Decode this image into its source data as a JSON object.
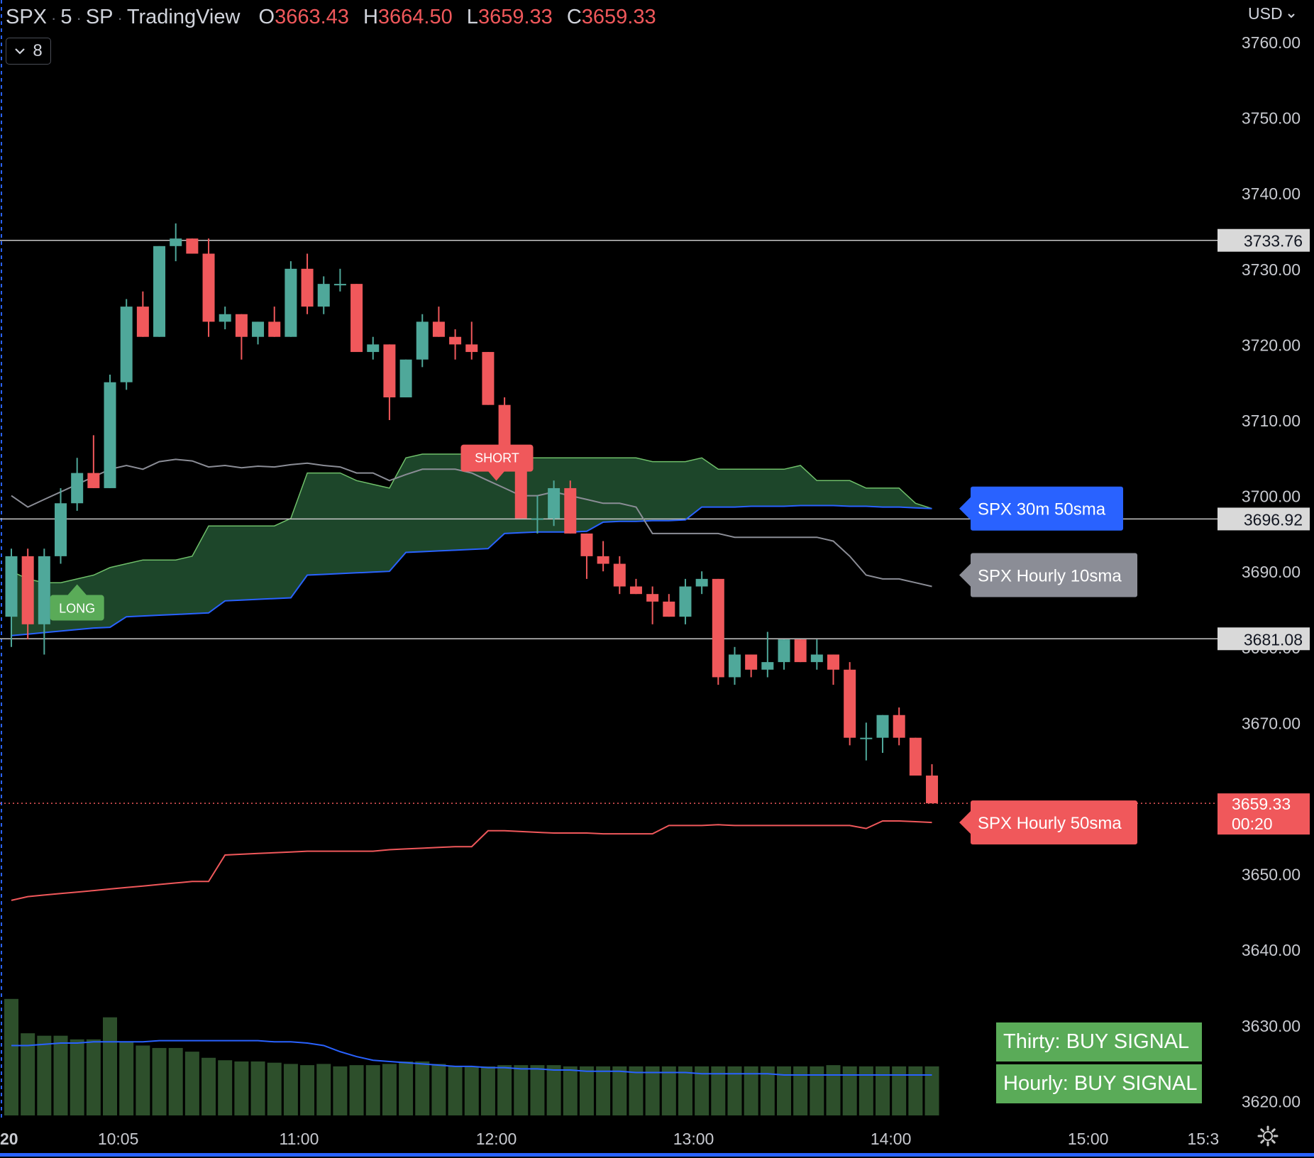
{
  "header": {
    "symbol": "SPX",
    "interval": "5",
    "exchange": "SP",
    "source": "TradingView",
    "open_label": "O",
    "open": "3663.43",
    "high_label": "H",
    "high": "3664.50",
    "low_label": "L",
    "low": "3659.33",
    "close_label": "C",
    "close": "3659.33",
    "indicators_count": "8",
    "currency": "USD"
  },
  "colors": {
    "up": "#4fa89a",
    "down": "#f0585b",
    "cloud": "#1f4a2c",
    "cloud_edge": "#6fc06a",
    "sma30m": "#2962ff",
    "sma10h": "#8b8d96",
    "sma50h": "#f0585b",
    "volume": "#2d4f2b",
    "volume_ma": "#2962ff",
    "hline": "#c8c8c8"
  },
  "markers": {
    "long": "LONG",
    "short": "SHORT"
  },
  "signals": {
    "thirty": "Thirty: BUY SIGNAL",
    "hourly": "Hourly: BUY SIGNAL"
  },
  "chart_data": {
    "type": "candlestick",
    "y_axis": {
      "min": 3615,
      "max": 3765,
      "ticks": [
        "3760.00",
        "3750.00",
        "3740.00",
        "3730.00",
        "3720.00",
        "3710.00",
        "3700.00",
        "3690.00",
        "3680.00",
        "3670.00",
        "3650.00",
        "3640.00",
        "3630.00",
        "3620.00"
      ]
    },
    "x_axis": {
      "ticks": [
        {
          "label": "20",
          "bar": -0.2
        },
        {
          "label": "10:05",
          "bar": 6.5
        },
        {
          "label": "11:00",
          "bar": 17.5
        },
        {
          "label": "12:00",
          "bar": 29.5
        },
        {
          "label": "13:00",
          "bar": 41.5
        },
        {
          "label": "14:00",
          "bar": 53.5
        },
        {
          "label": "15:00",
          "bar": 65.5
        },
        {
          "label": "15:3",
          "bar": 72.5
        }
      ]
    },
    "candles": [
      {
        "o": 3684,
        "h": 3693,
        "l": 3680,
        "c": 3692
      },
      {
        "o": 3692,
        "h": 3693,
        "l": 3681,
        "c": 3683
      },
      {
        "o": 3683,
        "h": 3693,
        "l": 3679,
        "c": 3692
      },
      {
        "o": 3692,
        "h": 3701,
        "l": 3691,
        "c": 3699
      },
      {
        "o": 3699,
        "h": 3705,
        "l": 3698,
        "c": 3703
      },
      {
        "o": 3703,
        "h": 3708,
        "l": 3701,
        "c": 3701
      },
      {
        "o": 3701,
        "h": 3716,
        "l": 3701,
        "c": 3715
      },
      {
        "o": 3715,
        "h": 3726,
        "l": 3714,
        "c": 3725
      },
      {
        "o": 3725,
        "h": 3727,
        "l": 3721,
        "c": 3721
      },
      {
        "o": 3721,
        "h": 3733,
        "l": 3721,
        "c": 3733
      },
      {
        "o": 3733,
        "h": 3736,
        "l": 3731,
        "c": 3734
      },
      {
        "o": 3734,
        "h": 3734,
        "l": 3732,
        "c": 3732
      },
      {
        "o": 3732,
        "h": 3734,
        "l": 3721,
        "c": 3723
      },
      {
        "o": 3723,
        "h": 3725,
        "l": 3722,
        "c": 3724
      },
      {
        "o": 3724,
        "h": 3724,
        "l": 3718,
        "c": 3721
      },
      {
        "o": 3721,
        "h": 3723,
        "l": 3720,
        "c": 3723
      },
      {
        "o": 3723,
        "h": 3725,
        "l": 3721,
        "c": 3721
      },
      {
        "o": 3721,
        "h": 3731,
        "l": 3721,
        "c": 3730
      },
      {
        "o": 3730,
        "h": 3732,
        "l": 3724,
        "c": 3725
      },
      {
        "o": 3725,
        "h": 3729,
        "l": 3724,
        "c": 3728
      },
      {
        "o": 3728,
        "h": 3730,
        "l": 3727,
        "c": 3728
      },
      {
        "o": 3728,
        "h": 3728,
        "l": 3719,
        "c": 3719
      },
      {
        "o": 3719,
        "h": 3721,
        "l": 3718,
        "c": 3720
      },
      {
        "o": 3720,
        "h": 3720,
        "l": 3710,
        "c": 3713
      },
      {
        "o": 3713,
        "h": 3718,
        "l": 3713,
        "c": 3718
      },
      {
        "o": 3718,
        "h": 3724,
        "l": 3717,
        "c": 3723
      },
      {
        "o": 3723,
        "h": 3725,
        "l": 3721,
        "c": 3721
      },
      {
        "o": 3721,
        "h": 3722,
        "l": 3718,
        "c": 3720
      },
      {
        "o": 3720,
        "h": 3723,
        "l": 3718,
        "c": 3719
      },
      {
        "o": 3719,
        "h": 3719,
        "l": 3712,
        "c": 3712
      },
      {
        "o": 3712,
        "h": 3713,
        "l": 3705,
        "c": 3705
      },
      {
        "o": 3705,
        "h": 3706,
        "l": 3697,
        "c": 3697
      },
      {
        "o": 3697,
        "h": 3700,
        "l": 3695,
        "c": 3697
      },
      {
        "o": 3697,
        "h": 3702,
        "l": 3696,
        "c": 3701
      },
      {
        "o": 3701,
        "h": 3702,
        "l": 3695,
        "c": 3695
      },
      {
        "o": 3695,
        "h": 3695,
        "l": 3689,
        "c": 3692
      },
      {
        "o": 3692,
        "h": 3694,
        "l": 3690,
        "c": 3691
      },
      {
        "o": 3691,
        "h": 3692,
        "l": 3687,
        "c": 3688
      },
      {
        "o": 3688,
        "h": 3689,
        "l": 3687,
        "c": 3687
      },
      {
        "o": 3687,
        "h": 3688,
        "l": 3683,
        "c": 3686
      },
      {
        "o": 3686,
        "h": 3687,
        "l": 3684,
        "c": 3684
      },
      {
        "o": 3684,
        "h": 3689,
        "l": 3683,
        "c": 3688
      },
      {
        "o": 3688,
        "h": 3690,
        "l": 3687,
        "c": 3689
      },
      {
        "o": 3689,
        "h": 3689,
        "l": 3675,
        "c": 3676
      },
      {
        "o": 3676,
        "h": 3680,
        "l": 3675,
        "c": 3679
      },
      {
        "o": 3679,
        "h": 3679,
        "l": 3676,
        "c": 3677
      },
      {
        "o": 3677,
        "h": 3682,
        "l": 3676,
        "c": 3678
      },
      {
        "o": 3678,
        "h": 3681,
        "l": 3677,
        "c": 3681
      },
      {
        "o": 3681,
        "h": 3681,
        "l": 3678,
        "c": 3678
      },
      {
        "o": 3678,
        "h": 3681,
        "l": 3677,
        "c": 3679
      },
      {
        "o": 3679,
        "h": 3679,
        "l": 3675,
        "c": 3677
      },
      {
        "o": 3677,
        "h": 3678,
        "l": 3667,
        "c": 3668
      },
      {
        "o": 3668,
        "h": 3670,
        "l": 3665,
        "c": 3668
      },
      {
        "o": 3668,
        "h": 3671,
        "l": 3666,
        "c": 3671
      },
      {
        "o": 3671,
        "h": 3672,
        "l": 3667,
        "c": 3668
      },
      {
        "o": 3668,
        "h": 3668,
        "l": 3663,
        "c": 3663
      },
      {
        "o": 3663,
        "h": 3664.5,
        "l": 3659.33,
        "c": 3659.33
      }
    ],
    "volume": [
      95,
      67,
      65,
      65,
      62,
      62,
      80,
      60,
      57,
      55,
      55,
      52,
      47,
      45,
      44,
      44,
      43,
      42,
      41,
      42,
      40,
      41,
      41,
      42,
      44,
      44,
      42,
      40,
      40,
      40,
      41,
      41,
      41,
      41,
      40,
      40,
      40,
      40,
      40,
      40,
      40,
      40,
      40,
      40,
      40,
      40,
      40,
      40,
      40,
      40,
      41,
      40,
      40,
      40,
      40,
      40,
      40
    ],
    "volume_ma": {
      "max_volume": 120,
      "values": [
        57,
        57,
        58,
        59,
        59,
        60,
        60,
        60,
        60,
        61,
        61,
        61,
        61,
        61,
        61,
        61,
        60,
        60,
        59,
        57,
        52,
        48,
        45,
        44,
        43,
        42,
        41,
        40,
        40,
        39,
        39,
        38,
        38,
        37,
        37,
        36,
        36,
        36,
        35,
        35,
        35,
        35,
        34,
        34,
        34,
        34,
        34,
        33,
        33,
        33,
        33,
        33,
        33,
        33,
        33,
        33,
        33
      ]
    },
    "horizontal_lines": [
      {
        "value": 3733.76,
        "label": "3733.76"
      },
      {
        "value": 3696.92,
        "label": "3696.92"
      },
      {
        "value": 3681.08,
        "label": "3681.08"
      }
    ],
    "last_price": {
      "value": 3659.33,
      "label": "3659.33",
      "countdown": "00:20"
    },
    "series": [
      {
        "name": "SPX 30m 50sma",
        "color": "#2962ff",
        "values": [
          3681.5,
          3681.7,
          3681.9,
          3682.1,
          3682.3,
          3682.5,
          3682.6,
          3684.0,
          3684.1,
          3684.2,
          3684.3,
          3684.4,
          3684.5,
          3686.1,
          3686.2,
          3686.3,
          3686.4,
          3686.5,
          3689.5,
          3689.6,
          3689.7,
          3689.8,
          3689.9,
          3690.0,
          3692.5,
          3692.6,
          3692.7,
          3692.8,
          3692.9,
          3693.0,
          3695.0,
          3695.1,
          3695.2,
          3695.2,
          3695.2,
          3695.3,
          3696.5,
          3696.6,
          3696.6,
          3696.7,
          3696.7,
          3696.8,
          3698.5,
          3698.5,
          3698.5,
          3698.6,
          3698.6,
          3698.6,
          3698.7,
          3698.7,
          3698.7,
          3698.6,
          3698.6,
          3698.5,
          3698.5,
          3698.4,
          3698.3
        ]
      },
      {
        "name": "SPX Hourly 10sma",
        "color": "#8b8d96",
        "values": [
          3700.0,
          3698.5,
          3699.5,
          3700.5,
          3701.5,
          3702.5,
          3703.5,
          3704.0,
          3703.5,
          3704.5,
          3704.8,
          3704.6,
          3703.8,
          3704.0,
          3703.7,
          3703.9,
          3703.8,
          3704.1,
          3704.3,
          3704.0,
          3703.8,
          3703.0,
          3703.0,
          3702.0,
          3702.8,
          3703.5,
          3703.5,
          3703.5,
          3703.0,
          3702.0,
          3701.0,
          3700.0,
          3700.0,
          3700.5,
          3700.0,
          3699.5,
          3699.0,
          3699.0,
          3698.5,
          3695.0,
          3695.0,
          3695.0,
          3695.0,
          3695.0,
          3694.5,
          3694.5,
          3694.5,
          3694.5,
          3694.5,
          3694.5,
          3694.0,
          3692.0,
          3689.5,
          3689.0,
          3689.0,
          3688.5,
          3688.0
        ]
      },
      {
        "name": "SPX Hourly 50sma",
        "color": "#f0585b",
        "values": [
          3646.5,
          3647.0,
          3647.2,
          3647.4,
          3647.6,
          3647.8,
          3648.0,
          3648.2,
          3648.4,
          3648.6,
          3648.8,
          3649.0,
          3649.0,
          3652.5,
          3652.6,
          3652.7,
          3652.8,
          3652.9,
          3653.0,
          3653.0,
          3653.0,
          3653.0,
          3653.0,
          3653.2,
          3653.3,
          3653.4,
          3653.5,
          3653.6,
          3653.6,
          3655.7,
          3655.7,
          3655.6,
          3655.5,
          3655.4,
          3655.4,
          3655.4,
          3655.3,
          3655.3,
          3655.3,
          3655.3,
          3656.4,
          3656.4,
          3656.4,
          3656.5,
          3656.4,
          3656.4,
          3656.4,
          3656.4,
          3656.4,
          3656.4,
          3656.4,
          3656.4,
          3656.0,
          3657.0,
          3657.0,
          3656.9,
          3656.8
        ]
      }
    ],
    "cloud_upper": [
      3690.0,
      3689.0,
      3688.5,
      3688.5,
      3689.0,
      3689.5,
      3690.5,
      3691.0,
      3691.5,
      3691.5,
      3691.5,
      3692.0,
      3696.0,
      3696.0,
      3696.0,
      3696.0,
      3696.0,
      3697.0,
      3703.0,
      3703.0,
      3703.0,
      3702.0,
      3701.5,
      3701.0,
      3705.0,
      3705.5,
      3705.5,
      3705.5,
      3705.5,
      3704.5,
      3705.5,
      3705.0,
      3705.0,
      3705.0,
      3705.0,
      3705.0,
      3705.0,
      3705.0,
      3705.0,
      3704.5,
      3704.5,
      3704.5,
      3705.0,
      3703.5,
      3703.5,
      3703.5,
      3703.5,
      3703.5,
      3704.0,
      3702.0,
      3702.0,
      3702.0,
      3701.0,
      3701.0,
      3701.0,
      3699.0,
      3698.3
    ]
  }
}
